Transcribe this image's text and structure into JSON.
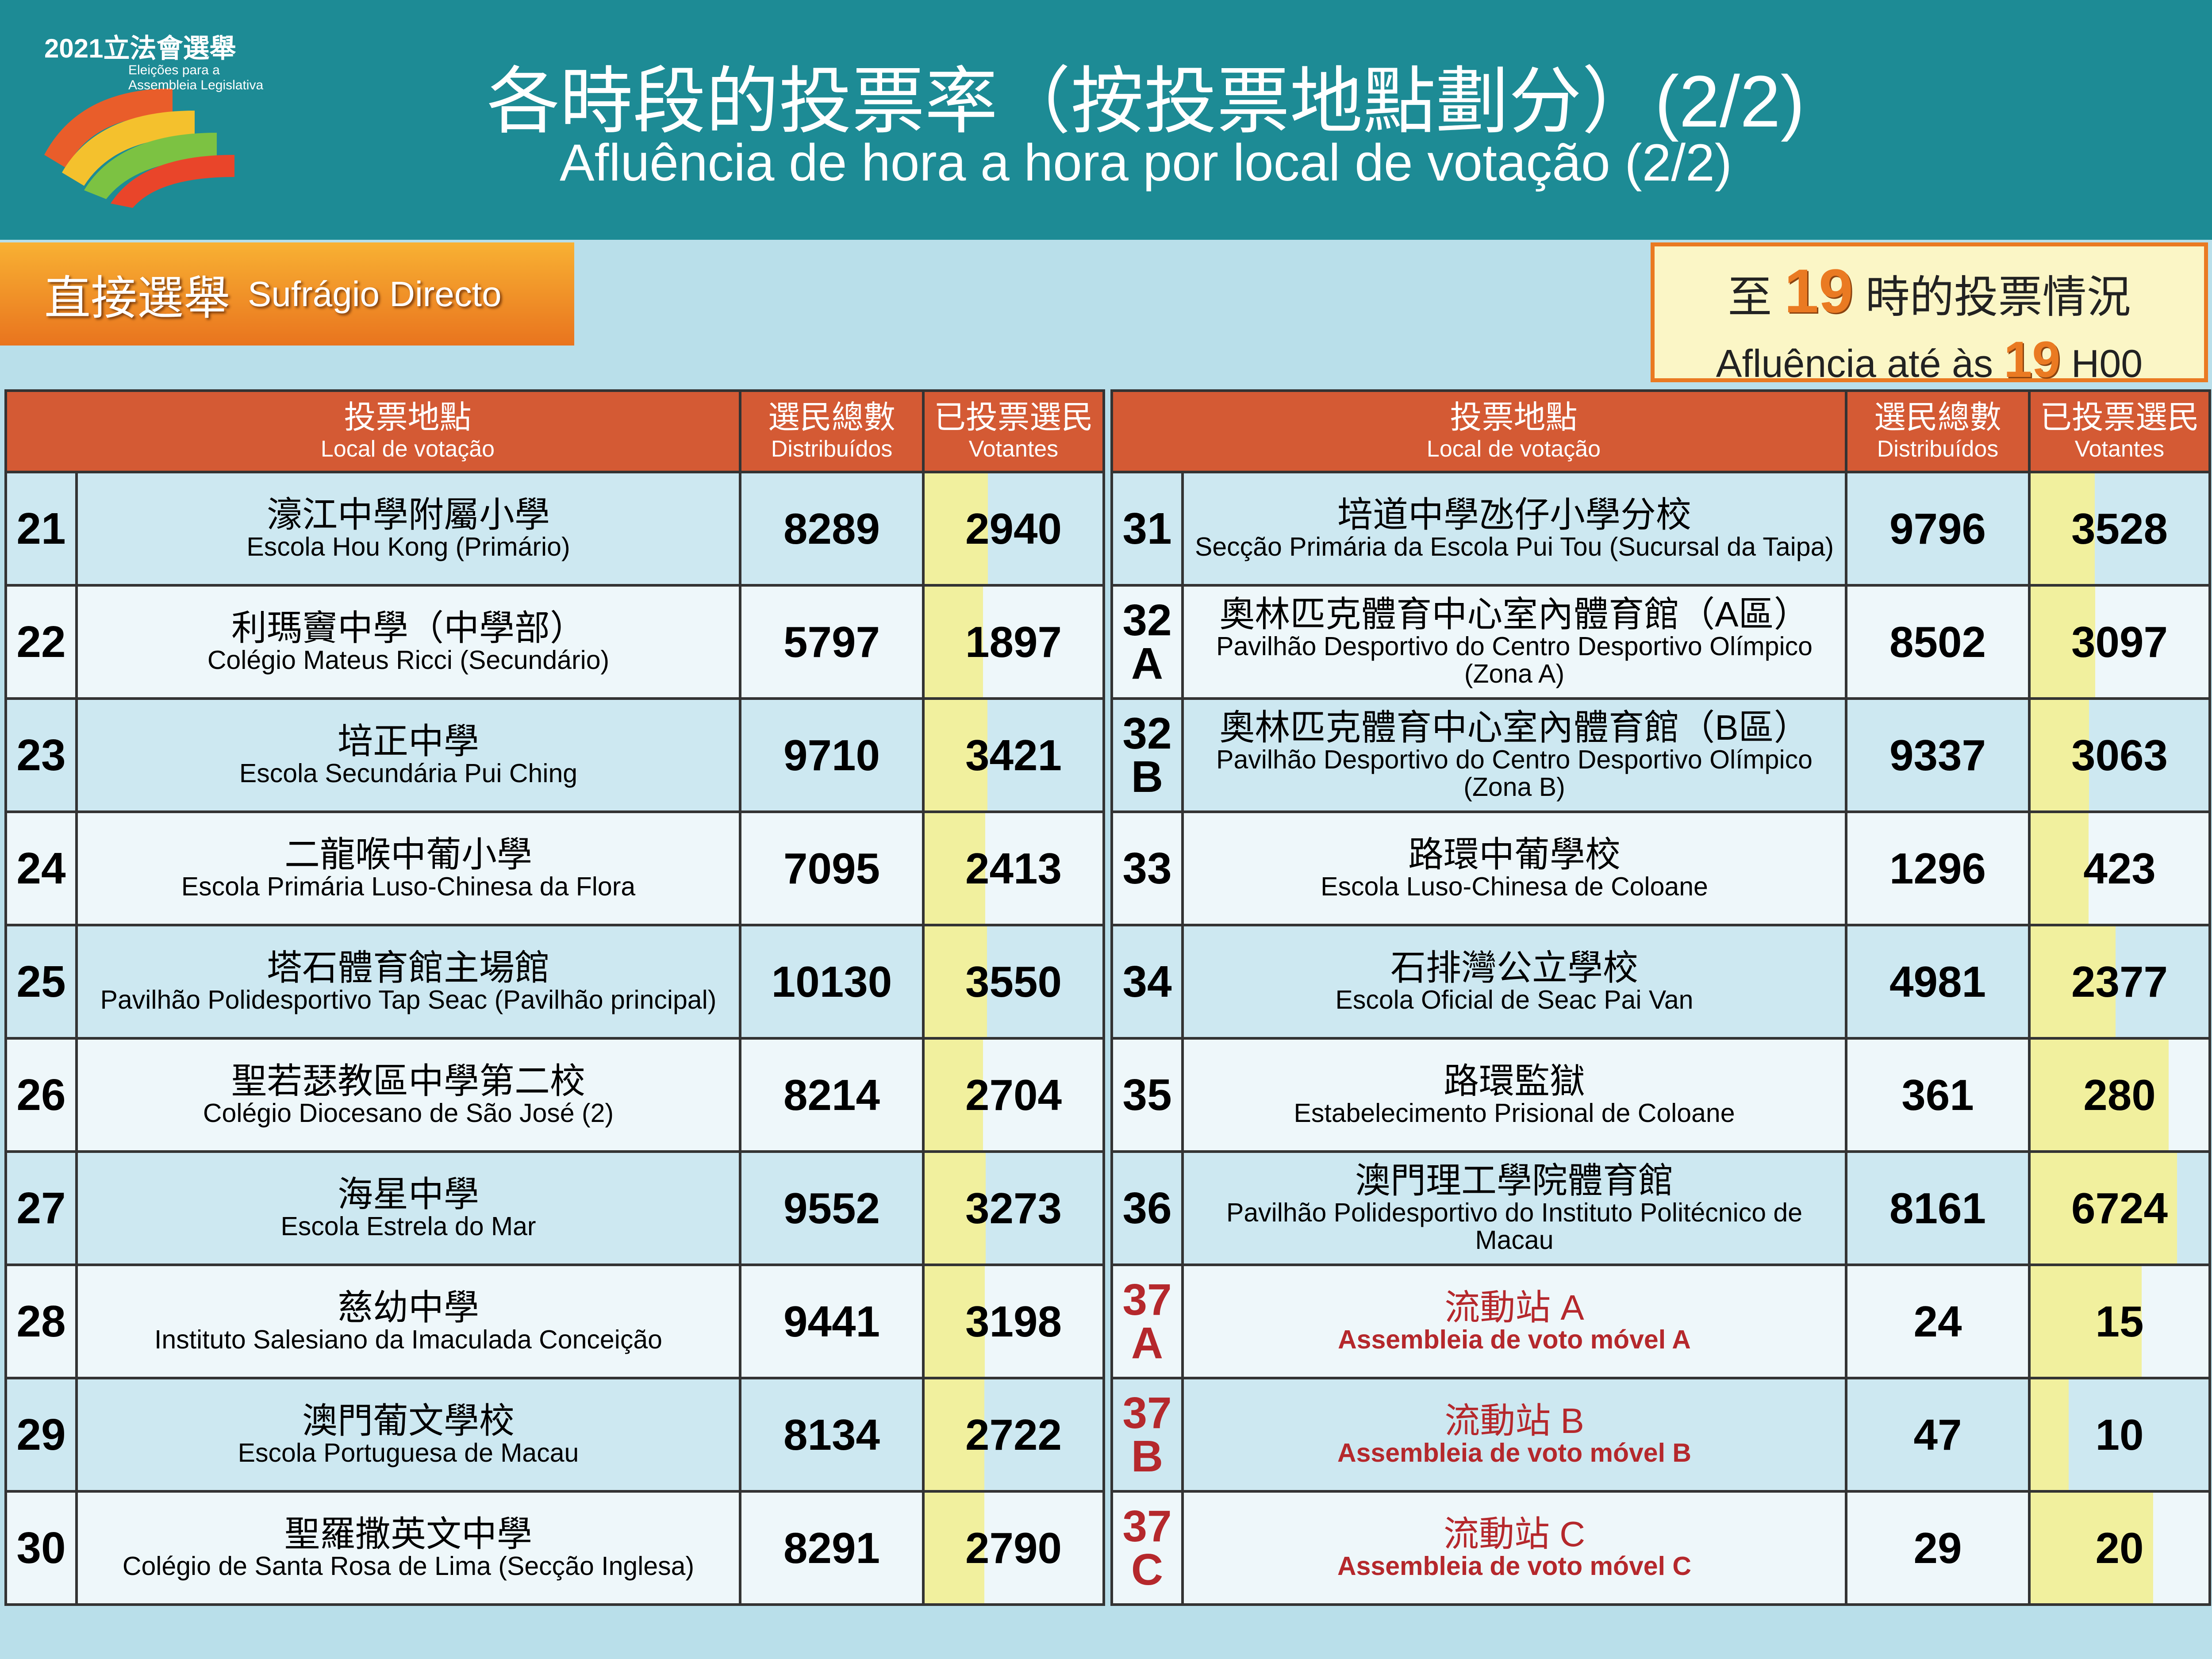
{
  "header": {
    "logo": {
      "year_title": "2021立法會選舉",
      "line1": "Eleições para a",
      "line2": "Assembleia Legislativa"
    },
    "title_zh": "各時段的投票率（按投票地點劃分）(2/2)",
    "title_pt": "Afluência de hora a hora por local de votação (2/2)"
  },
  "section": {
    "zh": "直接選舉",
    "pt": "Sufrágio Directo"
  },
  "status": {
    "zh_before": "至",
    "zh_hour": "19",
    "zh_after": "時的投票情況",
    "pt_before": "Afluência até às",
    "pt_hour": "19",
    "pt_after": "H00"
  },
  "tables": [
    {
      "headers": {
        "location_zh": "投票地點",
        "location_pt": "Local de votação",
        "distributed_zh": "選民總數",
        "distributed_pt": "Distribuídos",
        "voters_zh": "已投票選民",
        "voters_pt": "Votantes"
      },
      "rows": [
        {
          "id": "21",
          "name_zh": "濠江中學附屬小學",
          "name_pt": "Escola Hou Kong (Primário)",
          "distributed": 8289,
          "voters": 2940
        },
        {
          "id": "22",
          "name_zh": "利瑪竇中學（中學部）",
          "name_pt": "Colégio Mateus Ricci (Secundário)",
          "distributed": 5797,
          "voters": 1897
        },
        {
          "id": "23",
          "name_zh": "培正中學",
          "name_pt": "Escola Secundária Pui Ching",
          "distributed": 9710,
          "voters": 3421
        },
        {
          "id": "24",
          "name_zh": "二龍喉中葡小學",
          "name_pt": "Escola Primária Luso-Chinesa da Flora",
          "distributed": 7095,
          "voters": 2413
        },
        {
          "id": "25",
          "name_zh": "塔石體育館主場館",
          "name_pt": "Pavilhão Polidesportivo Tap Seac (Pavilhão principal)",
          "distributed": 10130,
          "voters": 3550
        },
        {
          "id": "26",
          "name_zh": "聖若瑟教區中學第二校",
          "name_pt": "Colégio Diocesano de São José (2)",
          "distributed": 8214,
          "voters": 2704
        },
        {
          "id": "27",
          "name_zh": "海星中學",
          "name_pt": "Escola Estrela do Mar",
          "distributed": 9552,
          "voters": 3273
        },
        {
          "id": "28",
          "name_zh": "慈幼中學",
          "name_pt": "Instituto Salesiano da Imaculada Conceição",
          "distributed": 9441,
          "voters": 3198
        },
        {
          "id": "29",
          "name_zh": "澳門葡文學校",
          "name_pt": "Escola Portuguesa de Macau",
          "distributed": 8134,
          "voters": 2722
        },
        {
          "id": "30",
          "name_zh": "聖羅撒英文中學",
          "name_pt": "Colégio de Santa Rosa de Lima (Secção Inglesa)",
          "distributed": 8291,
          "voters": 2790
        }
      ]
    },
    {
      "headers": {
        "location_zh": "投票地點",
        "location_pt": "Local de votação",
        "distributed_zh": "選民總數",
        "distributed_pt": "Distribuídos",
        "voters_zh": "已投票選民",
        "voters_pt": "Votantes"
      },
      "rows": [
        {
          "id": "31",
          "name_zh": "培道中學氹仔小學分校",
          "name_pt": "Secção Primária da Escola Pui Tou (Sucursal da Taipa)",
          "distributed": 9796,
          "voters": 3528
        },
        {
          "id": "32 A",
          "name_zh": "奧林匹克體育中心室內體育館（A區）",
          "name_pt": "Pavilhão Desportivo do Centro Desportivo Olímpico (Zona A)",
          "distributed": 8502,
          "voters": 3097
        },
        {
          "id": "32 B",
          "name_zh": "奧林匹克體育中心室內體育館（B區）",
          "name_pt": "Pavilhão Desportivo do Centro Desportivo Olímpico (Zona B)",
          "distributed": 9337,
          "voters": 3063
        },
        {
          "id": "33",
          "name_zh": "路環中葡學校",
          "name_pt": "Escola Luso-Chinesa de Coloane",
          "distributed": 1296,
          "voters": 423
        },
        {
          "id": "34",
          "name_zh": "石排灣公立學校",
          "name_pt": "Escola Oficial de Seac Pai Van",
          "distributed": 4981,
          "voters": 2377
        },
        {
          "id": "35",
          "name_zh": "路環監獄",
          "name_pt": "Estabelecimento Prisional de Coloane",
          "distributed": 361,
          "voters": 280
        },
        {
          "id": "36",
          "name_zh": "澳門理工學院體育館",
          "name_pt": "Pavilhão Polidesportivo do Instituto Politécnico de Macau",
          "distributed": 8161,
          "voters": 6724
        },
        {
          "id": "37 A",
          "name_zh": "流動站 A",
          "name_pt": "Assembleia de voto móvel A",
          "distributed": 24,
          "voters": 15,
          "color": "#b5282c"
        },
        {
          "id": "37 B",
          "name_zh": "流動站 B",
          "name_pt": "Assembleia de voto móvel B",
          "distributed": 47,
          "voters": 10,
          "color": "#b5282c"
        },
        {
          "id": "37 C",
          "name_zh": "流動站 C",
          "name_pt": "Assembleia de voto móvel C",
          "distributed": 29,
          "voters": 20,
          "color": "#b5282c"
        }
      ]
    }
  ]
}
